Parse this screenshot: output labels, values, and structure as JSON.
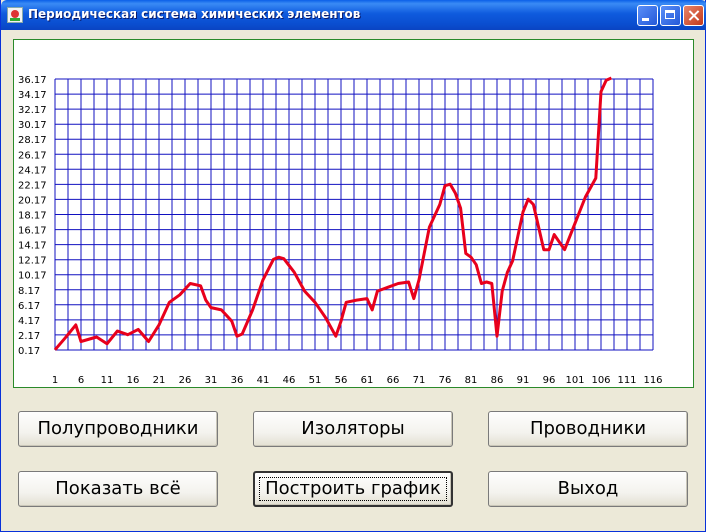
{
  "window": {
    "title": "Периодическая система химических элементов",
    "icon": "app-icon"
  },
  "buttons": {
    "semiconductors": "Полупроводники",
    "insulators": "Изоляторы",
    "conductors": "Проводники",
    "show_all": "Показать всё",
    "build_chart": "Построить график",
    "exit": "Выход"
  },
  "colors": {
    "line": "#E8001C",
    "grid": "#1010C0",
    "frame": "#2A8A2A",
    "titlebar": "#0A5FE8"
  },
  "chart_data": {
    "type": "line",
    "title": "",
    "xlabel": "",
    "ylabel": "",
    "grid": true,
    "xlim": [
      1,
      116
    ],
    "ylim": [
      0.17,
      36.17
    ],
    "x_ticks": [
      "1",
      "6",
      "11",
      "16",
      "21",
      "26",
      "31",
      "36",
      "41",
      "46",
      "51",
      "56",
      "61",
      "66",
      "71",
      "76",
      "81",
      "86",
      "91",
      "96",
      "101",
      "106",
      "111",
      "116"
    ],
    "y_ticks": [
      "0.17",
      "2.17",
      "4.17",
      "6.17",
      "8.17",
      "10.17",
      "12.17",
      "14.17",
      "16.17",
      "18.17",
      "20.17",
      "22.17",
      "24.17",
      "26.17",
      "28.17",
      "30.17",
      "32.17",
      "34.17",
      "36.17"
    ],
    "series": [
      {
        "x": [
          1,
          3,
          5,
          6,
          7,
          9,
          11,
          13,
          15,
          17,
          19,
          21,
          23,
          25,
          27,
          29,
          30,
          31,
          33,
          35,
          36,
          37,
          39,
          41,
          43,
          44,
          45,
          47,
          49,
          51,
          53,
          55,
          56,
          57,
          59,
          61,
          62,
          63,
          65,
          67,
          69,
          70,
          71,
          73,
          75,
          76,
          77,
          78,
          79,
          80,
          81,
          82,
          83,
          84,
          85,
          86,
          87,
          88,
          89,
          91,
          92,
          93,
          95,
          96,
          97,
          99,
          101,
          103,
          105,
          106,
          107,
          108
        ],
        "y": [
          0.2,
          1.8,
          3.5,
          1.3,
          1.5,
          1.9,
          1.0,
          2.7,
          2.2,
          2.9,
          1.3,
          3.5,
          6.5,
          7.5,
          9.0,
          8.7,
          6.8,
          5.8,
          5.5,
          4.0,
          2.0,
          2.3,
          5.5,
          9.5,
          12.2,
          12.5,
          12.3,
          10.5,
          8.0,
          6.5,
          4.5,
          2.0,
          4.0,
          6.5,
          6.8,
          7.0,
          5.5,
          8.0,
          8.5,
          9.0,
          9.2,
          7.0,
          9.5,
          16.5,
          19.5,
          22.0,
          22.2,
          21.0,
          19.0,
          13.0,
          12.5,
          11.5,
          9.0,
          9.2,
          9.0,
          2.0,
          8.0,
          10.5,
          12.0,
          18.5,
          20.2,
          19.5,
          13.5,
          13.5,
          15.5,
          13.5,
          17.0,
          20.5,
          23.0,
          34.5,
          36.0,
          36.3
        ]
      }
    ]
  }
}
